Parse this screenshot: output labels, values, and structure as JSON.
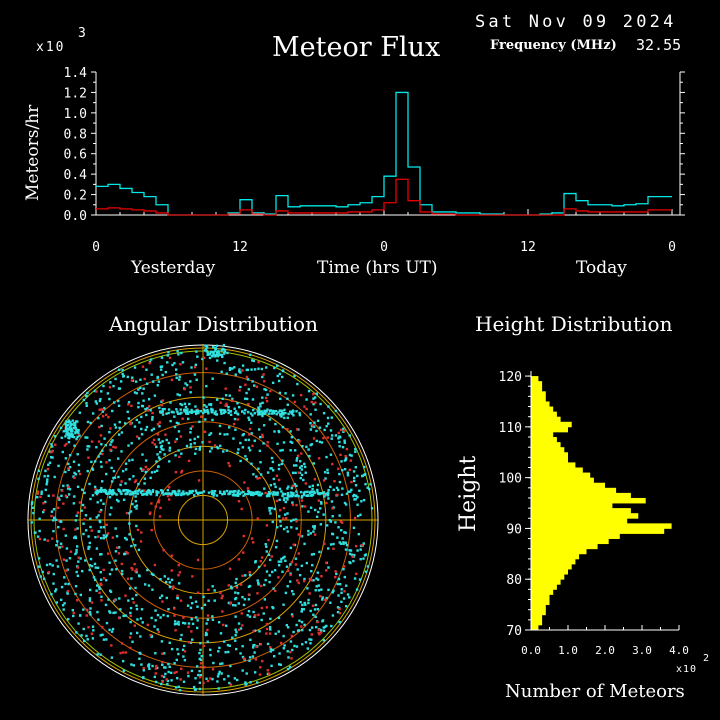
{
  "header": {
    "date": "Sat Nov 09 2024",
    "title": "Meteor Flux",
    "frequency_label": "Frequency (MHz)",
    "frequency_value": "32.55"
  },
  "chart_data": [
    {
      "type": "line",
      "title": "Meteor Flux",
      "xlabel": "Time (hrs UT)",
      "ylabel": "Meteors/hr",
      "y_multiplier": "x10",
      "y_exponent": "3",
      "ylim": [
        0,
        1.4
      ],
      "y_ticks": [
        "0.0",
        "0.2",
        "0.4",
        "0.6",
        "0.8",
        "1.0",
        "1.2",
        "1.4"
      ],
      "x_ticks": [
        "0",
        "12",
        "0",
        "12",
        "0"
      ],
      "day_labels": [
        "Yesterday",
        "Today"
      ],
      "x_hours": [
        0,
        1,
        2,
        3,
        4,
        5,
        6,
        7,
        8,
        9,
        10,
        11,
        12,
        13,
        14,
        15,
        16,
        17,
        18,
        19,
        20,
        21,
        22,
        23,
        24,
        25,
        26,
        27,
        28,
        29,
        30,
        31,
        32,
        33,
        34,
        35,
        36,
        37,
        38,
        39,
        40,
        41,
        42,
        43,
        44,
        45,
        46,
        47
      ],
      "series": [
        {
          "color": "#00e8e8",
          "values": [
            0.28,
            0.3,
            0.26,
            0.22,
            0.18,
            0.1,
            0.0,
            0.0,
            0.0,
            0.0,
            0.0,
            0.02,
            0.15,
            0.02,
            0.01,
            0.19,
            0.08,
            0.09,
            0.09,
            0.09,
            0.08,
            0.1,
            0.12,
            0.18,
            0.38,
            1.2,
            0.47,
            0.1,
            0.03,
            0.03,
            0.02,
            0.02,
            0.01,
            0.01,
            0.0,
            0.0,
            0.0,
            0.01,
            0.02,
            0.21,
            0.14,
            0.1,
            0.1,
            0.09,
            0.1,
            0.11,
            0.18,
            0.18
          ]
        },
        {
          "color": "#e80000",
          "values": [
            0.06,
            0.07,
            0.06,
            0.05,
            0.04,
            0.02,
            0.0,
            0.0,
            0.0,
            0.0,
            0.0,
            0.01,
            0.05,
            0.01,
            0.0,
            0.04,
            0.02,
            0.02,
            0.02,
            0.02,
            0.02,
            0.03,
            0.03,
            0.05,
            0.12,
            0.35,
            0.14,
            0.03,
            0.01,
            0.01,
            0.0,
            0.0,
            0.0,
            0.0,
            0.0,
            0.0,
            0.0,
            0.0,
            0.0,
            0.06,
            0.04,
            0.03,
            0.03,
            0.03,
            0.03,
            0.03,
            0.05,
            0.05
          ]
        }
      ]
    },
    {
      "type": "scatter",
      "title": "Angular Distribution",
      "grid": "polar",
      "ring_count": 7,
      "point_colors": [
        "#30e0e0",
        "#e03030"
      ],
      "trail_color": "#30e0e0"
    },
    {
      "type": "bar",
      "orientation": "horizontal",
      "title": "Height Distribution",
      "xlabel": "Number of Meteors",
      "ylabel": "Height",
      "x_multiplier": "x10",
      "x_exponent": "2",
      "xlim": [
        0,
        4.0
      ],
      "x_ticks": [
        "0.0",
        "1.0",
        "2.0",
        "3.0",
        "4.0"
      ],
      "ylim": [
        70,
        121
      ],
      "y_ticks": [
        "70",
        "80",
        "90",
        "100",
        "110",
        "120"
      ],
      "bar_color": "#ffff00",
      "heights": [
        71,
        72,
        73,
        74,
        75,
        76,
        77,
        78,
        79,
        80,
        81,
        82,
        83,
        84,
        85,
        86,
        87,
        88,
        89,
        90,
        91,
        92,
        93,
        94,
        95,
        96,
        97,
        98,
        99,
        100,
        101,
        102,
        103,
        104,
        105,
        106,
        107,
        108,
        109,
        110,
        111,
        112,
        113,
        114,
        115,
        116,
        117,
        118,
        119,
        120
      ],
      "values": [
        0.2,
        0.3,
        0.3,
        0.4,
        0.4,
        0.5,
        0.5,
        0.6,
        0.7,
        0.8,
        0.9,
        1.0,
        1.1,
        1.2,
        1.3,
        1.5,
        1.8,
        2.1,
        2.4,
        3.6,
        3.8,
        2.6,
        2.9,
        2.7,
        2.2,
        3.1,
        2.7,
        2.3,
        2.0,
        1.7,
        1.6,
        1.4,
        1.2,
        1.0,
        1.0,
        0.9,
        0.8,
        0.7,
        0.6,
        1.0,
        1.1,
        0.8,
        0.7,
        0.6,
        0.5,
        0.4,
        0.4,
        0.3,
        0.3,
        0.2
      ]
    }
  ]
}
